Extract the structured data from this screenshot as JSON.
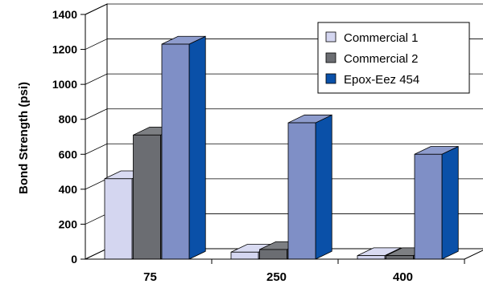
{
  "chart_data": {
    "type": "bar",
    "title": "",
    "xlabel": "",
    "ylabel": "Bond Strength (psi)",
    "ylim": [
      0,
      1400
    ],
    "yticks": [
      "0",
      "200",
      "400",
      "600",
      "800",
      "1000",
      "1200",
      "1400"
    ],
    "categories": [
      "75",
      "250",
      "400"
    ],
    "grid": true,
    "legend_position": "top-right",
    "series": [
      {
        "name": "Commercial 1",
        "values": [
          460,
          40,
          20
        ],
        "color": "#d4d6f0"
      },
      {
        "name": "Commercial 2",
        "values": [
          710,
          55,
          20
        ],
        "color": "#6b6d72"
      },
      {
        "name": "Epox-Eez 454",
        "values": [
          1230,
          780,
          600
        ],
        "color": "#7f8fc6",
        "legend_color": "#0a50a8"
      }
    ]
  }
}
